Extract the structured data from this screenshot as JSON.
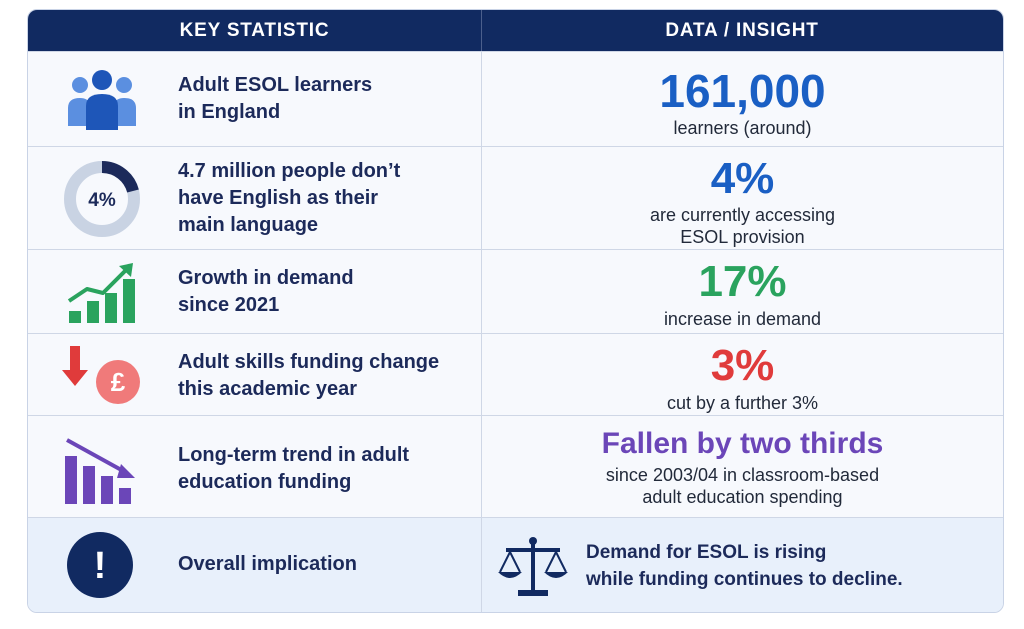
{
  "header": {
    "left": "KEY STATISTIC",
    "right": "DATA / INSIGHT"
  },
  "rows": [
    {
      "icon": "people-icon",
      "label_lines": [
        "Adult ESOL learners",
        "in England"
      ],
      "value": "161,000",
      "value_color": "#1a5fc4",
      "desc_lines": [
        "learners (around)"
      ]
    },
    {
      "icon": "donut-chart-icon",
      "icon_text": "4%",
      "icon_fraction": 0.04,
      "label_lines": [
        "4.7 million people don’t",
        "have English as their",
        "main language"
      ],
      "value": "4%",
      "value_color": "#1a5fc4",
      "desc_lines": [
        "are currently accessing",
        "ESOL provision"
      ]
    },
    {
      "icon": "growth-chart-icon",
      "label_lines": [
        "Growth in demand",
        "since 2021"
      ],
      "value": "17%",
      "value_color": "#2aa35e",
      "desc_lines": [
        "increase in demand"
      ]
    },
    {
      "icon": "funding-cut-icon",
      "icon_text": "£",
      "label_lines": [
        "Adult skills funding change",
        "this academic year"
      ],
      "value": "3%",
      "value_color": "#e03b3b",
      "desc_lines": [
        "cut by a further 3%"
      ]
    },
    {
      "icon": "declining-bars-icon",
      "label_lines": [
        "Long-term trend in adult",
        "education funding"
      ],
      "value": "Fallen by two thirds",
      "value_color": "#6b46b8",
      "desc_lines": [
        "since 2003/04 in classroom-based",
        "adult education spending"
      ]
    },
    {
      "icon": "exclamation-icon",
      "icon_text": "!",
      "label_lines": [
        "Overall implication"
      ],
      "value_icon": "scales-icon",
      "desc_lines": [
        "Demand for ESOL is rising",
        "while funding continues to decline."
      ]
    }
  ],
  "colors": {
    "header_bg": "#112a61",
    "navy": "#1c2a5a",
    "blue": "#1a5fc4",
    "green": "#2aa35e",
    "red": "#e03b3b",
    "purple": "#6b46b8"
  }
}
